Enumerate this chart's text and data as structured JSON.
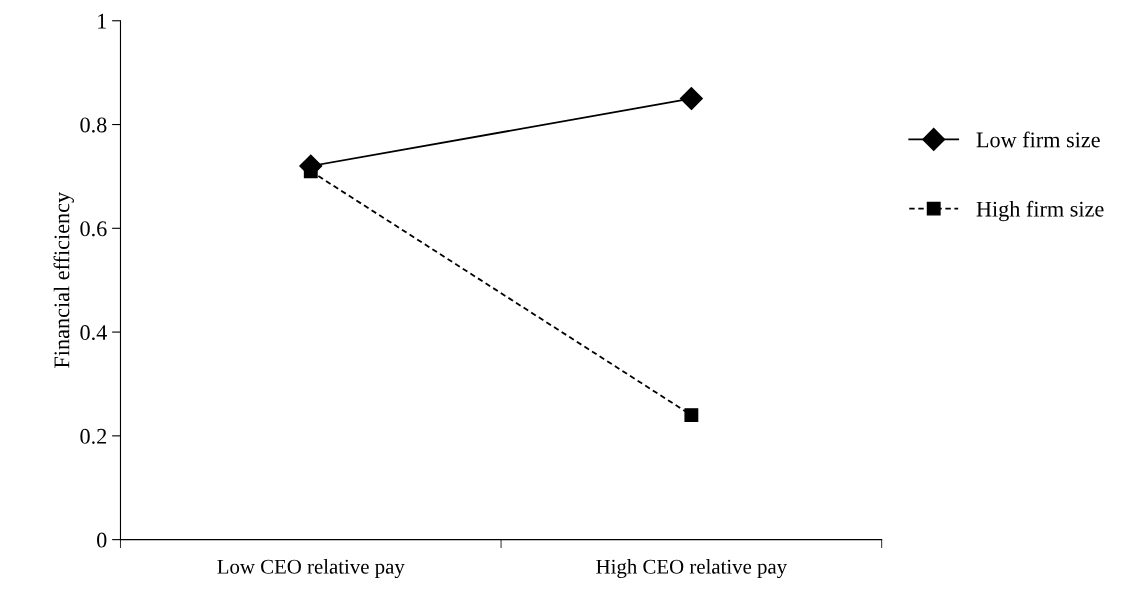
{
  "chart_data": {
    "type": "line",
    "ylabel": "Financial efficiency",
    "categories": [
      "Low CEO relative pay",
      "High CEO relative pay"
    ],
    "series": [
      {
        "name": "Low firm size",
        "color": "#000000",
        "values": [
          0.72,
          0.85
        ],
        "marker": "diamond",
        "line_style": "solid"
      },
      {
        "name": "High firm size",
        "color": "#000000",
        "values": [
          0.71,
          0.24
        ],
        "marker": "square",
        "line_style": "dashed"
      }
    ],
    "ylim": [
      0,
      1
    ],
    "yticks": [
      0,
      0.2,
      0.4,
      0.6,
      0.8,
      1
    ],
    "grid": false,
    "legend": "right"
  }
}
